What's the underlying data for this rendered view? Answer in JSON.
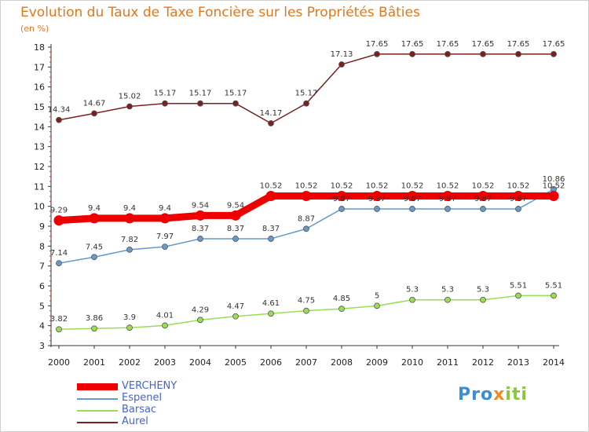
{
  "title": "Evolution du Taux de Taxe Foncière sur les Propriétés Bâties",
  "unit_label": "(en %)",
  "logo_text": "Proxiti",
  "chart_data": {
    "type": "line",
    "x": [
      "2000",
      "2001",
      "2002",
      "2003",
      "2004",
      "2005",
      "2006",
      "2007",
      "2008",
      "2009",
      "2010",
      "2011",
      "2012",
      "2013",
      "2014"
    ],
    "ylim": [
      3,
      18
    ],
    "yticks": [
      "3",
      "4",
      "5",
      "6",
      "7",
      "8",
      "9",
      "10",
      "11",
      "12",
      "13",
      "14",
      "15",
      "16",
      "17",
      "18"
    ],
    "grid": false,
    "legend_position": "bottom-left",
    "series": [
      {
        "name": "VERCHENY",
        "color": "#ee0000",
        "values": [
          9.29,
          9.4,
          9.4,
          9.4,
          9.54,
          9.54,
          10.52,
          10.52,
          10.52,
          10.52,
          10.52,
          10.52,
          10.52,
          10.52,
          10.52
        ],
        "labels": [
          "9.29",
          "9.4",
          "9.4",
          "9.4",
          "9.54",
          "9.54",
          "10.52",
          "10.52",
          "10.52",
          "10.52",
          "10.52",
          "10.52",
          "10.52",
          "10.52",
          "10.52"
        ]
      },
      {
        "name": "Espenel",
        "color": "#6699cc",
        "values": [
          7.14,
          7.45,
          7.82,
          7.97,
          8.37,
          8.37,
          8.37,
          8.87,
          9.87,
          9.87,
          9.87,
          9.87,
          9.87,
          9.87,
          10.86
        ],
        "labels": [
          "7.14",
          "7.45",
          "7.82",
          "7.97",
          "8.37",
          "8.37",
          "8.37",
          "8.87",
          "9.87",
          "9.87",
          "9.87",
          "9.87",
          "9.87",
          "9.87",
          "10.86"
        ]
      },
      {
        "name": "Barsac",
        "color": "#99dd55",
        "values": [
          3.82,
          3.86,
          3.9,
          4.01,
          4.29,
          4.47,
          4.61,
          4.75,
          4.85,
          5,
          5.3,
          5.3,
          5.3,
          5.51,
          5.51
        ],
        "labels": [
          "3.82",
          "3.86",
          "3.9",
          "4.01",
          "4.29",
          "4.47",
          "4.61",
          "4.75",
          "4.85",
          "5",
          "5.3",
          "5.3",
          "5.3",
          "5.51",
          "5.51"
        ]
      },
      {
        "name": "Aurel",
        "color": "#7a2020",
        "values": [
          14.34,
          14.67,
          15.02,
          15.17,
          15.17,
          15.17,
          14.17,
          15.17,
          17.13,
          17.65,
          17.65,
          17.65,
          17.65,
          17.65,
          17.65
        ],
        "labels": [
          "14.34",
          "14.67",
          "15.02",
          "15.17",
          "15.17",
          "15.17",
          "14.17",
          "15.17",
          "17.13",
          "17.65",
          "17.65",
          "17.65",
          "17.65",
          "17.65",
          "17.65"
        ]
      }
    ]
  }
}
